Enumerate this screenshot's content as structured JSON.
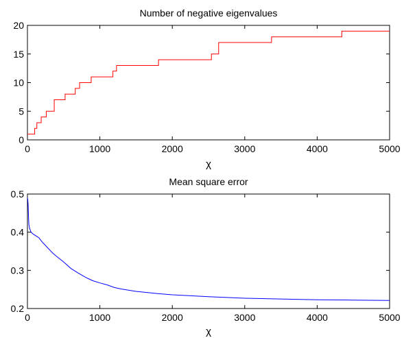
{
  "chart_data": [
    {
      "type": "line",
      "title": "Number of negative eigenvalues",
      "xlabel": "χ",
      "ylabel": "",
      "xlim": [
        0,
        5000
      ],
      "ylim": [
        0,
        20
      ],
      "xticks": [
        0,
        1000,
        2000,
        3000,
        4000,
        5000
      ],
      "yticks": [
        0,
        5,
        10,
        15,
        20
      ],
      "grid": false,
      "step": true,
      "series": [
        {
          "color": "#ff0000",
          "x": [
            0,
            100,
            100,
            130,
            130,
            190,
            190,
            260,
            260,
            370,
            370,
            520,
            520,
            660,
            660,
            720,
            720,
            880,
            880,
            1180,
            1180,
            1230,
            1230,
            1810,
            1810,
            2540,
            2540,
            2640,
            2640,
            3370,
            3370,
            4340,
            4340,
            5000
          ],
          "y": [
            1,
            1,
            2,
            2,
            3,
            3,
            4,
            4,
            5,
            5,
            7,
            7,
            8,
            8,
            9,
            9,
            10,
            10,
            11,
            11,
            12,
            12,
            13,
            13,
            14,
            14,
            15,
            15,
            17,
            17,
            18,
            18,
            19,
            19
          ]
        }
      ]
    },
    {
      "type": "line",
      "title": "Mean square error",
      "xlabel": "χ",
      "ylabel": "",
      "xlim": [
        0,
        5000
      ],
      "ylim": [
        0.2,
        0.5
      ],
      "xticks": [
        0,
        1000,
        2000,
        3000,
        4000,
        5000
      ],
      "yticks": [
        0.2,
        0.3,
        0.4,
        0.5
      ],
      "grid": false,
      "series": [
        {
          "color": "#0000ff",
          "x": [
            0,
            5,
            10,
            15,
            20,
            30,
            50,
            80,
            120,
            160,
            200,
            250,
            300,
            350,
            400,
            500,
            600,
            700,
            800,
            900,
            1000,
            1100,
            1200,
            1300,
            1500,
            1800,
            2000,
            2500,
            3000,
            3500,
            4000,
            4500,
            5000
          ],
          "y": [
            0.49,
            0.485,
            0.47,
            0.44,
            0.42,
            0.41,
            0.4,
            0.395,
            0.39,
            0.385,
            0.375,
            0.365,
            0.355,
            0.345,
            0.337,
            0.322,
            0.305,
            0.293,
            0.282,
            0.273,
            0.267,
            0.262,
            0.255,
            0.251,
            0.245,
            0.239,
            0.236,
            0.231,
            0.227,
            0.225,
            0.223,
            0.222,
            0.221
          ]
        }
      ]
    }
  ]
}
